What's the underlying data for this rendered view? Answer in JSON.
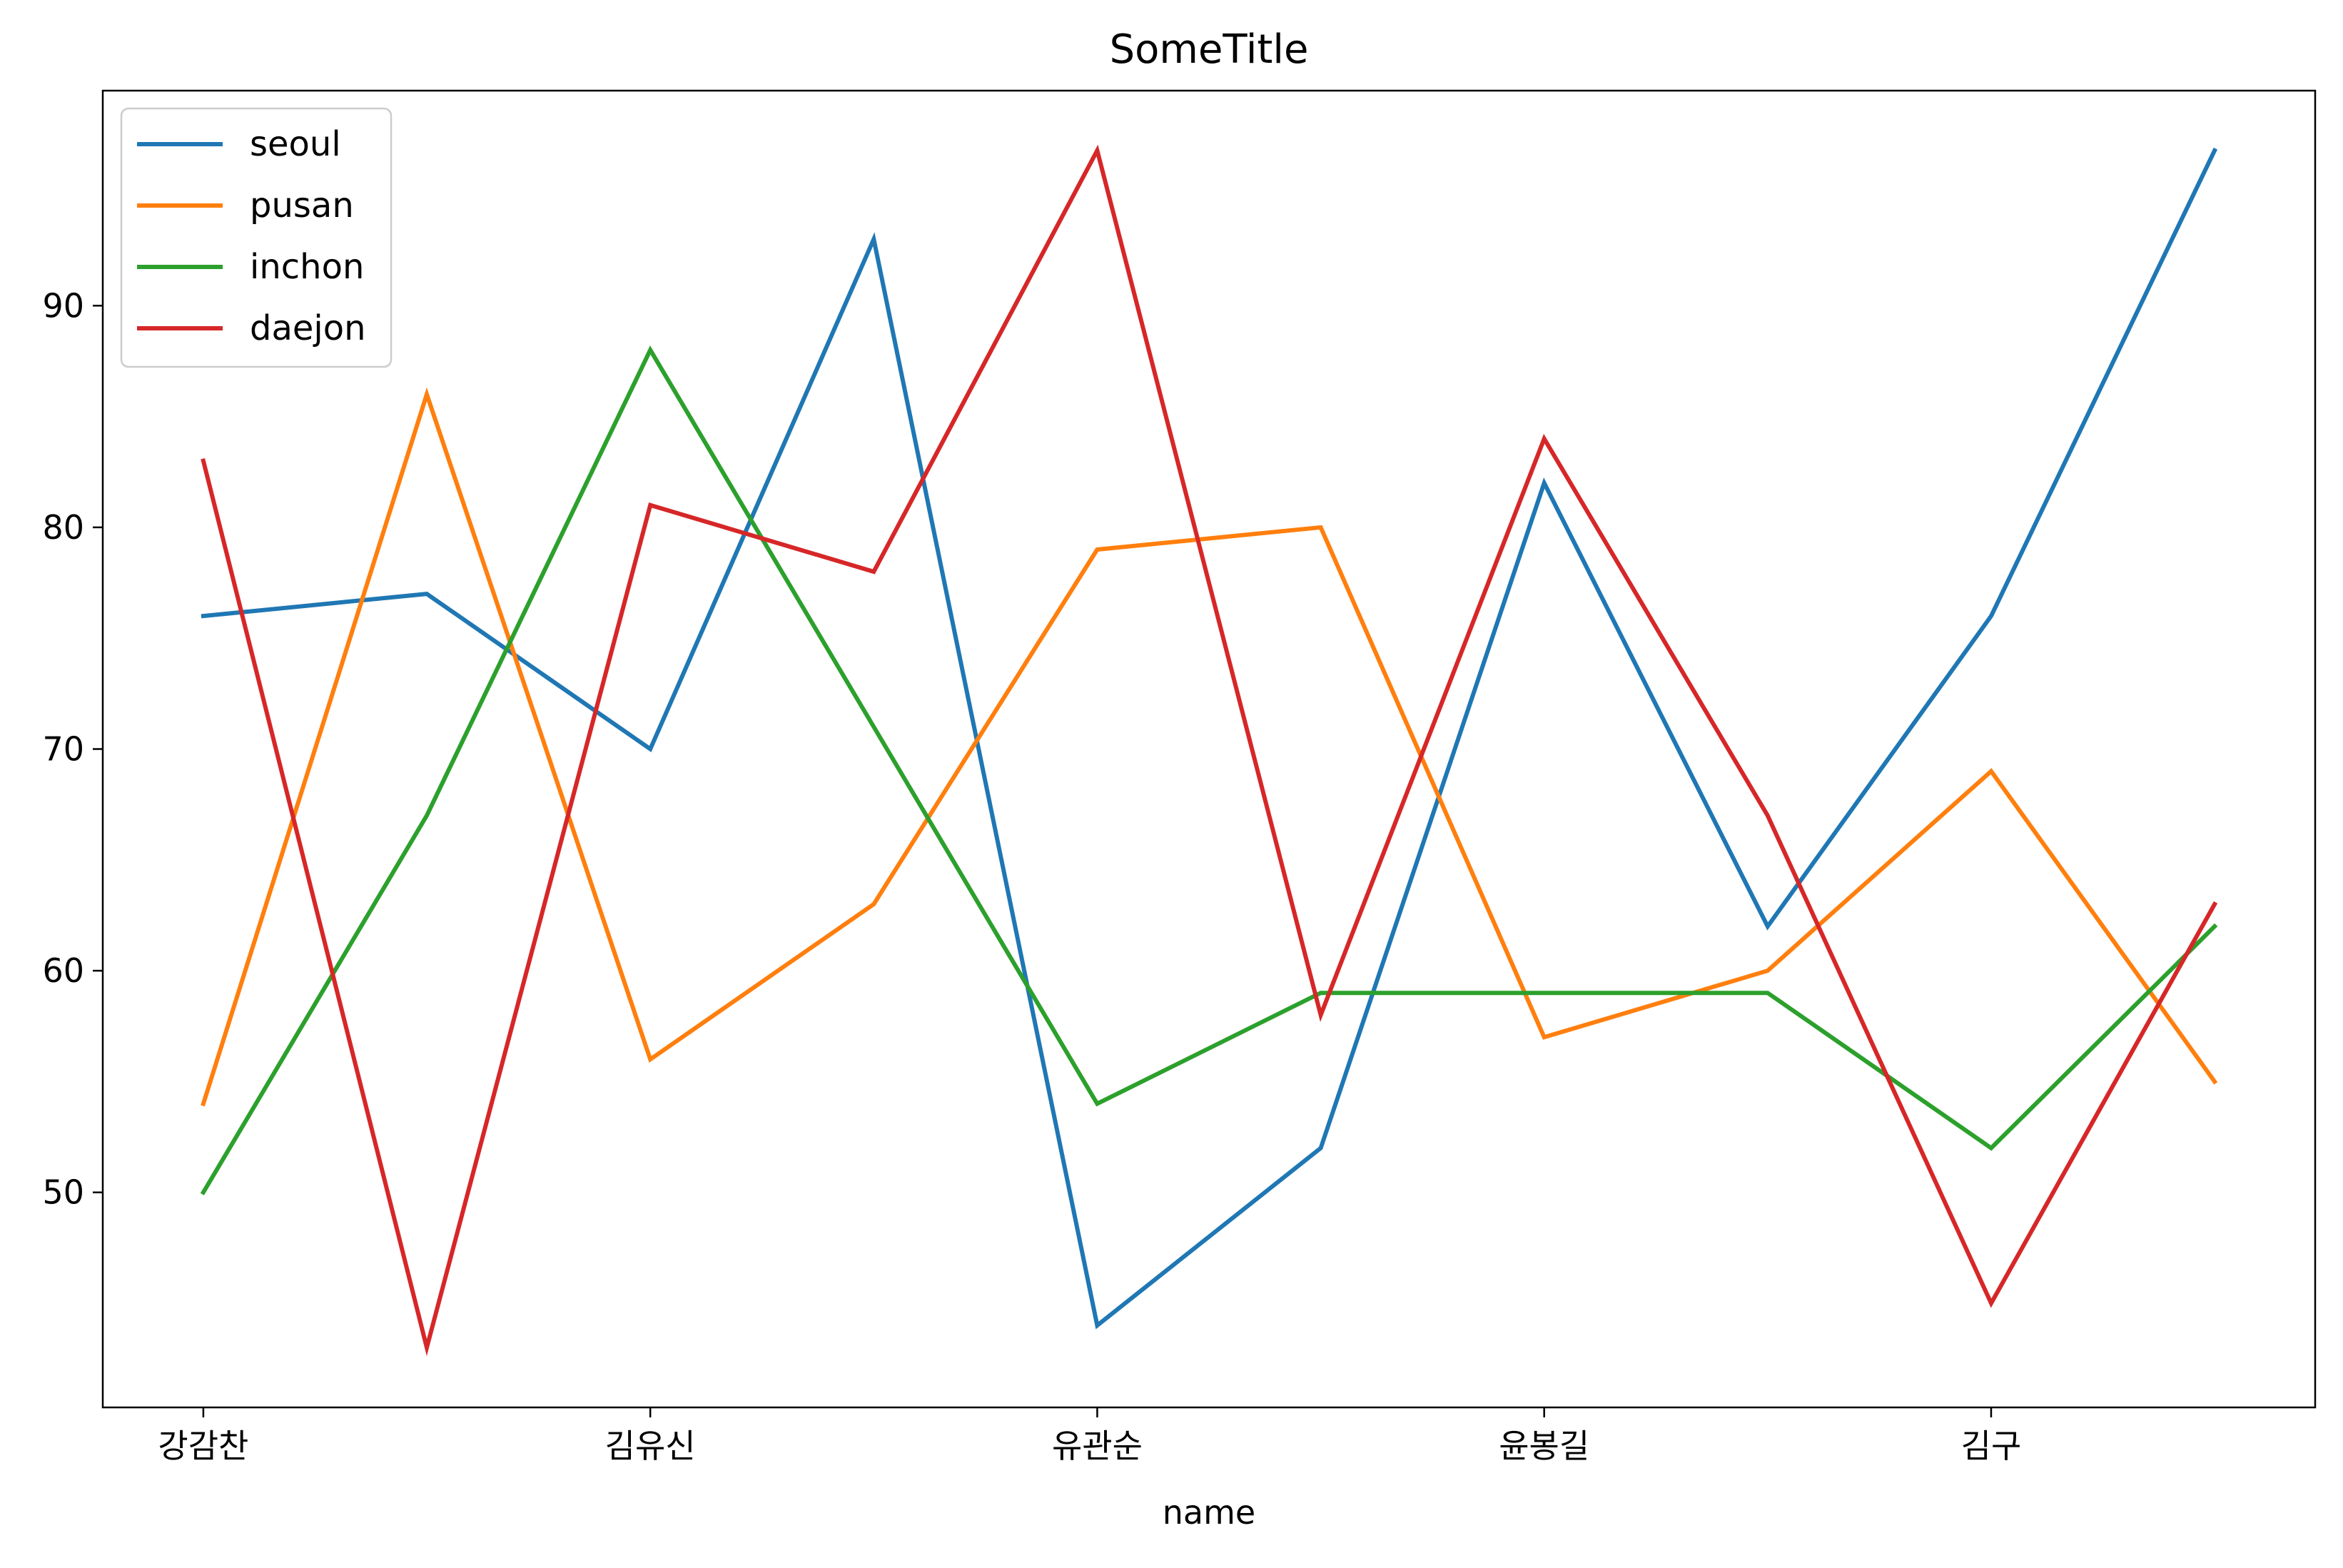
{
  "chart_data": {
    "type": "line",
    "title": "SomeTitle",
    "xlabel": "name",
    "ylabel": "",
    "x_tick_labels": [
      "강감찬",
      "김유신",
      "유관순",
      "윤봉길",
      "김구"
    ],
    "x_tick_indices": [
      0,
      2,
      4,
      6,
      8
    ],
    "y_ticks": [
      50,
      60,
      70,
      80,
      90
    ],
    "ylim": [
      40.3,
      99.7
    ],
    "xlim": [
      -0.45,
      9.45
    ],
    "grid": false,
    "legend_position": "upper-left",
    "series": [
      {
        "name": "seoul",
        "color": "#1f77b4",
        "values": [
          76,
          77,
          70,
          93,
          44,
          52,
          82,
          62,
          76,
          97
        ]
      },
      {
        "name": "pusan",
        "color": "#ff7f0e",
        "values": [
          54,
          86,
          56,
          63,
          79,
          80,
          57,
          60,
          69,
          55
        ]
      },
      {
        "name": "inchon",
        "color": "#2ca02c",
        "values": [
          50,
          67,
          88,
          71,
          54,
          59,
          59,
          59,
          52,
          62
        ]
      },
      {
        "name": "daejon",
        "color": "#d62728",
        "values": [
          83,
          43,
          81,
          78,
          97,
          58,
          84,
          67,
          45,
          63
        ]
      }
    ]
  }
}
